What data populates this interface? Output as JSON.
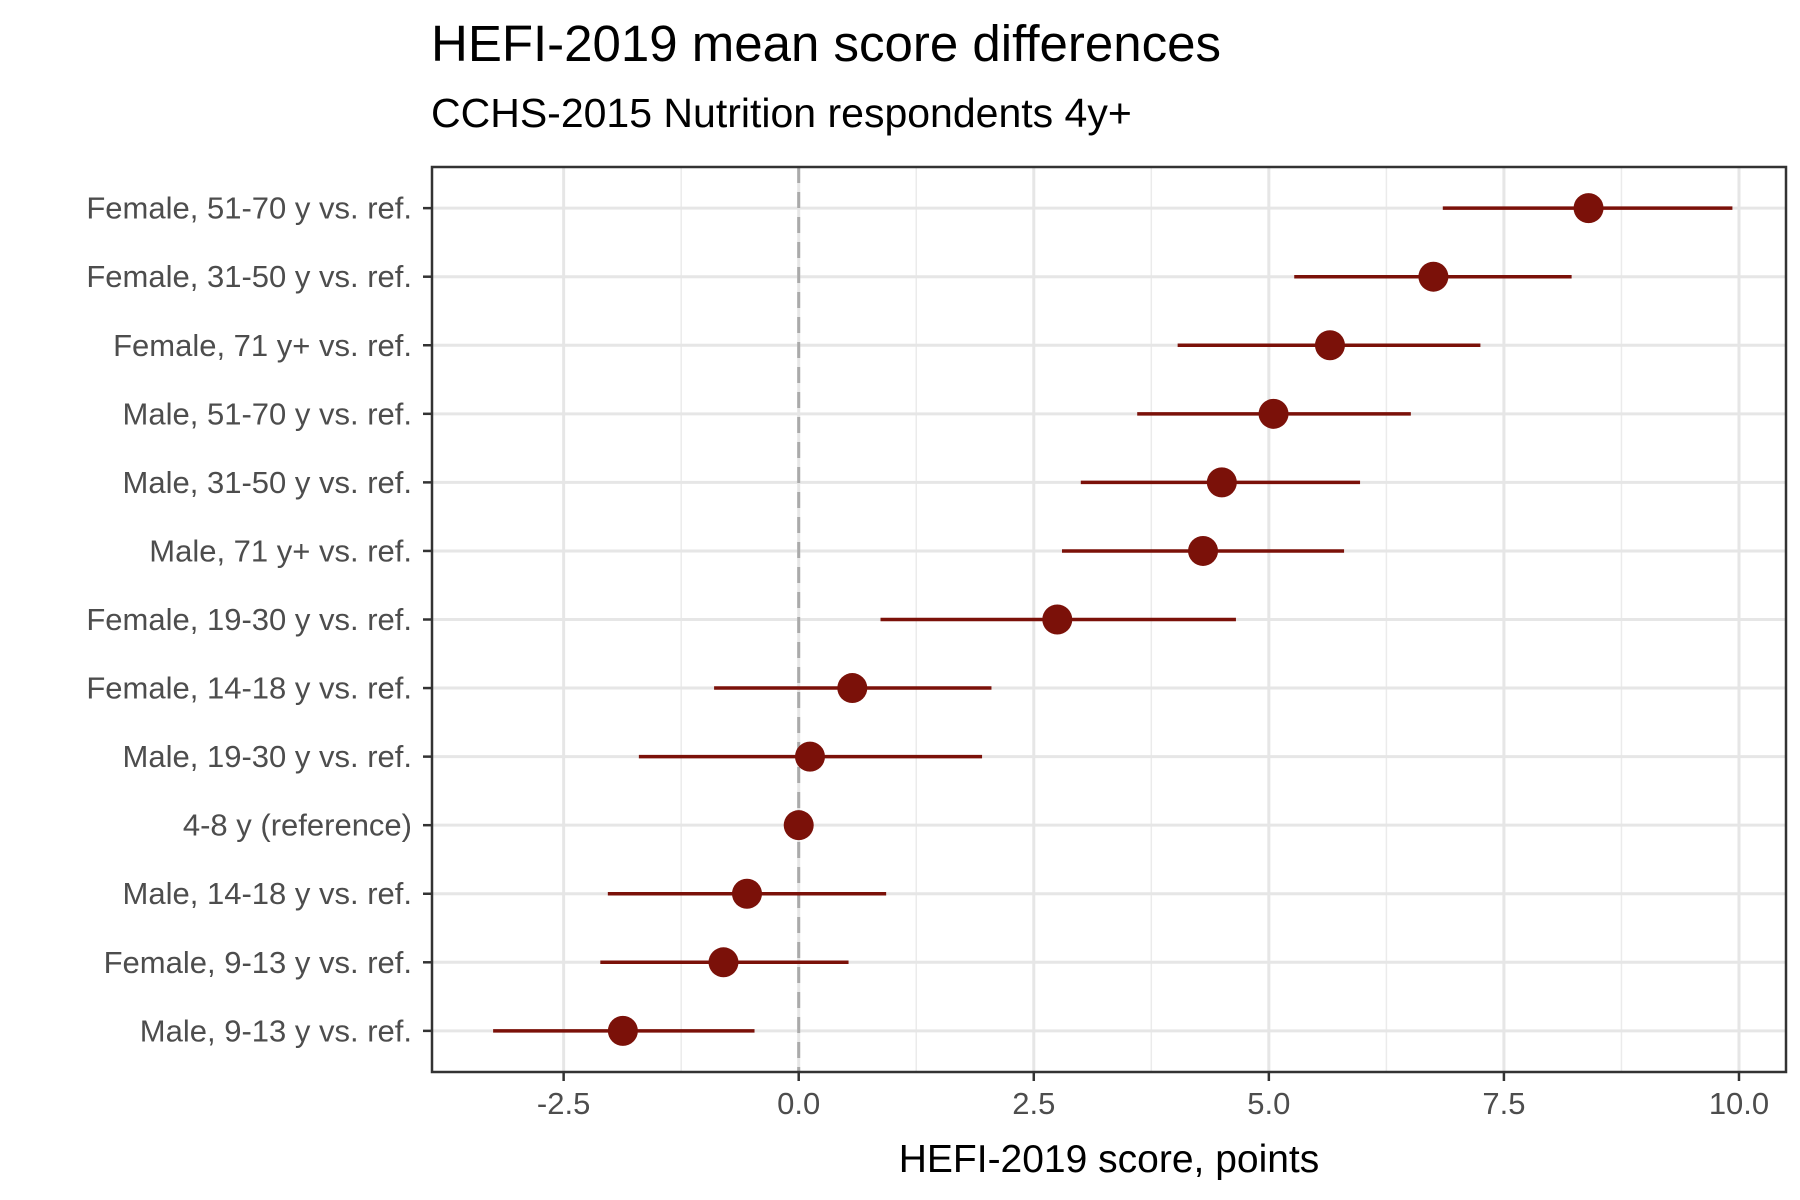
{
  "chart_data": {
    "type": "scatter",
    "title": "HEFI-2019 mean score differences",
    "subtitle": "CCHS-2015 Nutrition respondents 4y+",
    "xlabel": "HEFI-2019 score, points",
    "ylabel": "",
    "xlim": [
      -3.9,
      10.5
    ],
    "x_ticks": [
      "-2.5",
      "0.0",
      "2.5",
      "5.0",
      "7.5",
      "10.0"
    ],
    "x_tick_values": [
      -2.5,
      0,
      2.5,
      5,
      7.5,
      10
    ],
    "reference_line": 0,
    "grid": true,
    "point_color": "#7b1109",
    "reference_line_color": "#aaaaaa",
    "categories": [
      "Female, 51-70 y vs. ref.",
      "Female, 31-50 y vs. ref.",
      "Female, 71 y+ vs. ref.",
      "Male, 51-70 y vs. ref.",
      "Male, 31-50 y vs. ref.",
      "Male, 71 y+ vs. ref.",
      "Female, 19-30 y vs. ref.",
      "Female, 14-18 y vs. ref.",
      "Male, 19-30 y vs. ref.",
      "4-8 y (reference)",
      "Male, 14-18 y vs. ref.",
      "Female, 9-13 y vs. ref.",
      "Male, 9-13 y vs. ref."
    ],
    "values": [
      8.4,
      6.75,
      5.65,
      5.05,
      4.5,
      4.3,
      2.75,
      0.57,
      0.12,
      0.0,
      -0.55,
      -0.8,
      -1.87
    ],
    "lower": [
      6.85,
      5.27,
      4.03,
      3.6,
      3.0,
      2.8,
      0.87,
      -0.9,
      -1.7,
      null,
      -2.03,
      -2.11,
      -3.25
    ],
    "upper": [
      9.93,
      8.22,
      7.25,
      6.51,
      5.97,
      5.8,
      4.65,
      2.05,
      1.95,
      null,
      0.93,
      0.53,
      -0.47
    ]
  }
}
